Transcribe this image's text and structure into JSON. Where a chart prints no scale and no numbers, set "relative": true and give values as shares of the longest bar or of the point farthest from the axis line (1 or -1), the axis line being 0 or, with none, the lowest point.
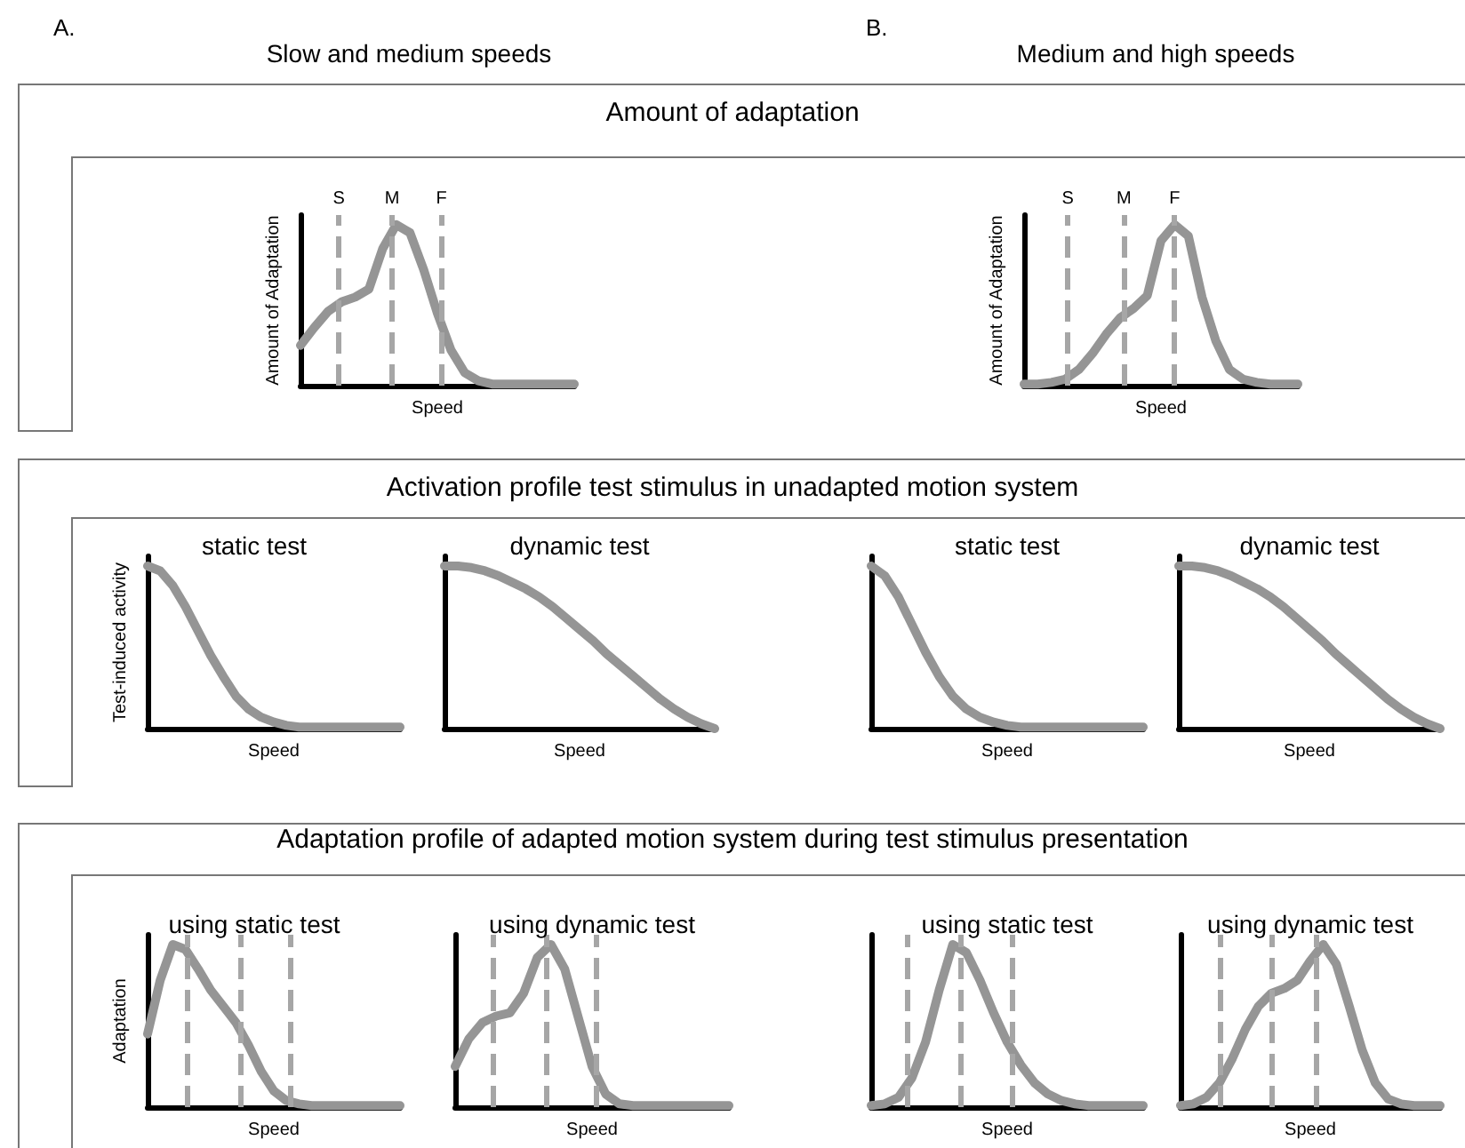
{
  "chart_data": [
    {
      "type": "line",
      "relative": true,
      "xlabel": "Speed",
      "ylabel": "Amount of Adaptation",
      "categories": [
        null,
        null,
        null,
        null,
        null,
        null,
        null,
        null,
        null,
        null,
        null,
        null,
        null,
        null,
        null,
        null,
        null,
        null,
        null,
        null,
        null
      ],
      "tick_labels": false,
      "line_style": "solid",
      "annotations": [
        "A.",
        "Slow and medium speeds",
        "Amount of adaptation",
        "S",
        "M",
        "F"
      ],
      "series": [
        {
          "color": "#959595",
          "values": [
            0.25,
            0.36,
            0.46,
            0.52,
            0.55,
            0.6,
            0.85,
            1.0,
            0.95,
            0.72,
            0.45,
            0.22,
            0.08,
            0.03,
            0.01,
            0.01,
            0.01,
            0.01,
            0.01,
            0.01,
            0.01
          ]
        }
      ]
    },
    {
      "type": "line",
      "relative": true,
      "xlabel": "Speed",
      "ylabel": "Amount of Adaptation",
      "categories": [
        null,
        null,
        null,
        null,
        null,
        null,
        null,
        null,
        null,
        null,
        null,
        null,
        null,
        null,
        null,
        null,
        null,
        null,
        null,
        null,
        null
      ],
      "tick_labels": false,
      "line_style": "solid",
      "annotations": [
        "B.",
        "Medium and high speeds",
        "S",
        "M",
        "F"
      ],
      "series": [
        {
          "color": "#959595",
          "values": [
            0.01,
            0.01,
            0.02,
            0.04,
            0.1,
            0.2,
            0.32,
            0.42,
            0.48,
            0.56,
            0.9,
            1.0,
            0.93,
            0.55,
            0.28,
            0.1,
            0.04,
            0.02,
            0.01,
            0.01,
            0.01
          ]
        }
      ]
    },
    {
      "type": "line",
      "relative": true,
      "title": "static test",
      "xlabel": "Speed",
      "ylabel": "Test-induced activity",
      "categories": [
        null,
        null,
        null,
        null,
        null,
        null,
        null,
        null,
        null,
        null,
        null,
        null,
        null,
        null,
        null,
        null,
        null,
        null,
        null,
        null,
        null
      ],
      "tick_labels": false,
      "line_style": "solid",
      "annotations": [
        "Activation profile test stimulus in unadapted motion system"
      ],
      "series": [
        {
          "color": "#959595",
          "values": [
            1.0,
            0.97,
            0.88,
            0.75,
            0.6,
            0.45,
            0.32,
            0.2,
            0.12,
            0.07,
            0.04,
            0.02,
            0.01,
            0.01,
            0.01,
            0.01,
            0.01,
            0.01,
            0.01,
            0.01,
            0.01
          ]
        }
      ]
    },
    {
      "type": "line",
      "relative": true,
      "title": "dynamic test",
      "xlabel": "Speed",
      "categories": [
        null,
        null,
        null,
        null,
        null,
        null,
        null,
        null,
        null,
        null,
        null,
        null,
        null,
        null,
        null,
        null,
        null,
        null,
        null,
        null,
        null
      ],
      "tick_labels": false,
      "line_style": "solid",
      "series": [
        {
          "color": "#959595",
          "values": [
            1.0,
            1.0,
            0.99,
            0.97,
            0.94,
            0.9,
            0.86,
            0.81,
            0.75,
            0.68,
            0.61,
            0.54,
            0.46,
            0.39,
            0.32,
            0.25,
            0.18,
            0.12,
            0.07,
            0.03,
            0.0
          ]
        }
      ]
    },
    {
      "type": "line",
      "relative": true,
      "title": "static test",
      "xlabel": "Speed",
      "categories": [
        null,
        null,
        null,
        null,
        null,
        null,
        null,
        null,
        null,
        null,
        null,
        null,
        null,
        null,
        null,
        null,
        null,
        null,
        null,
        null,
        null
      ],
      "tick_labels": false,
      "line_style": "solid",
      "series": [
        {
          "color": "#959595",
          "values": [
            1.0,
            0.94,
            0.81,
            0.64,
            0.47,
            0.32,
            0.2,
            0.12,
            0.07,
            0.04,
            0.02,
            0.01,
            0.01,
            0.01,
            0.01,
            0.01,
            0.01,
            0.01,
            0.01,
            0.01,
            0.01
          ]
        }
      ]
    },
    {
      "type": "line",
      "relative": true,
      "title": "dynamic test",
      "xlabel": "Speed",
      "categories": [
        null,
        null,
        null,
        null,
        null,
        null,
        null,
        null,
        null,
        null,
        null,
        null,
        null,
        null,
        null,
        null,
        null,
        null,
        null,
        null,
        null
      ],
      "tick_labels": false,
      "line_style": "solid",
      "series": [
        {
          "color": "#959595",
          "values": [
            1.0,
            1.0,
            0.99,
            0.97,
            0.94,
            0.9,
            0.86,
            0.81,
            0.75,
            0.68,
            0.61,
            0.54,
            0.46,
            0.39,
            0.32,
            0.25,
            0.18,
            0.12,
            0.07,
            0.03,
            0.0
          ]
        }
      ]
    },
    {
      "type": "line",
      "relative": true,
      "title": "using static test",
      "xlabel": "Speed",
      "ylabel": "Adaptation",
      "categories": [
        null,
        null,
        null,
        null,
        null,
        null,
        null,
        null,
        null,
        null,
        null,
        null,
        null,
        null,
        null,
        null,
        null,
        null,
        null,
        null,
        null
      ],
      "tick_labels": false,
      "line_style": "solid",
      "annotations": [
        "Adaptation profile of adapted motion system during test stimulus presentation"
      ],
      "series": [
        {
          "color": "#959595",
          "values": [
            0.45,
            0.78,
            1.0,
            0.97,
            0.85,
            0.72,
            0.62,
            0.52,
            0.38,
            0.22,
            0.1,
            0.04,
            0.02,
            0.01,
            0.01,
            0.01,
            0.01,
            0.01,
            0.01,
            0.01,
            0.01
          ]
        }
      ]
    },
    {
      "type": "line",
      "relative": true,
      "title": "using dynamic test",
      "xlabel": "Speed",
      "categories": [
        null,
        null,
        null,
        null,
        null,
        null,
        null,
        null,
        null,
        null,
        null,
        null,
        null,
        null,
        null,
        null,
        null,
        null,
        null,
        null,
        null
      ],
      "tick_labels": false,
      "line_style": "solid",
      "series": [
        {
          "color": "#959595",
          "values": [
            0.25,
            0.42,
            0.52,
            0.56,
            0.58,
            0.7,
            0.92,
            1.0,
            0.85,
            0.55,
            0.25,
            0.08,
            0.02,
            0.01,
            0.01,
            0.01,
            0.01,
            0.01,
            0.01,
            0.01,
            0.01
          ]
        }
      ]
    },
    {
      "type": "line",
      "relative": true,
      "title": "using static test",
      "xlabel": "Speed",
      "categories": [
        null,
        null,
        null,
        null,
        null,
        null,
        null,
        null,
        null,
        null,
        null,
        null,
        null,
        null,
        null,
        null,
        null,
        null,
        null,
        null,
        null
      ],
      "tick_labels": false,
      "line_style": "solid",
      "series": [
        {
          "color": "#959595",
          "values": [
            0.01,
            0.02,
            0.06,
            0.18,
            0.4,
            0.72,
            1.0,
            0.95,
            0.78,
            0.58,
            0.4,
            0.26,
            0.15,
            0.08,
            0.04,
            0.02,
            0.01,
            0.01,
            0.01,
            0.01,
            0.01
          ]
        }
      ]
    },
    {
      "type": "line",
      "relative": true,
      "title": "using dynamic test",
      "xlabel": "Speed",
      "categories": [
        null,
        null,
        null,
        null,
        null,
        null,
        null,
        null,
        null,
        null,
        null,
        null,
        null,
        null,
        null,
        null,
        null,
        null,
        null,
        null,
        null
      ],
      "tick_labels": false,
      "line_style": "solid",
      "series": [
        {
          "color": "#959595",
          "values": [
            0.01,
            0.02,
            0.06,
            0.15,
            0.3,
            0.48,
            0.62,
            0.7,
            0.73,
            0.78,
            0.9,
            1.0,
            0.88,
            0.62,
            0.35,
            0.15,
            0.05,
            0.02,
            0.01,
            0.01,
            0.01
          ]
        }
      ]
    }
  ]
}
